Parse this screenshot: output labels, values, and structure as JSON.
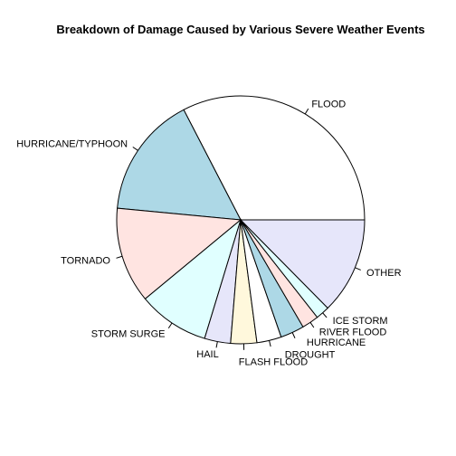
{
  "chart_data": {
    "type": "pie",
    "title": "Breakdown of Damage Caused by Various Severe Weather Events",
    "slices": [
      {
        "label": "FLOOD",
        "value": 32.6,
        "color": "#ffffff"
      },
      {
        "label": "HURRICANE/TYPHOON",
        "value": 15.9,
        "color": "#add8e6"
      },
      {
        "label": "TORNADO",
        "value": 12.5,
        "color": "#ffe4e1"
      },
      {
        "label": "STORM SURGE",
        "value": 9.3,
        "color": "#e0ffff"
      },
      {
        "label": "HAIL",
        "value": 3.4,
        "color": "#e6e6fa"
      },
      {
        "label": "FLASH FLOOD",
        "value": 3.4,
        "color": "#fff8dc"
      },
      {
        "label": "DROUGHT",
        "value": 3.2,
        "color": "#ffffff"
      },
      {
        "label": "HURRICANE",
        "value": 3.1,
        "color": "#add8e6"
      },
      {
        "label": "RIVER FLOOD",
        "value": 2.2,
        "color": "#ffe4e1"
      },
      {
        "label": "ICE STORM",
        "value": 1.8,
        "color": "#e0ffff"
      },
      {
        "label": "OTHER",
        "value": 12.6,
        "color": "#e6e6fa"
      }
    ],
    "start_angle_deg": 0,
    "direction": "counterclockwise",
    "legend": "none"
  }
}
